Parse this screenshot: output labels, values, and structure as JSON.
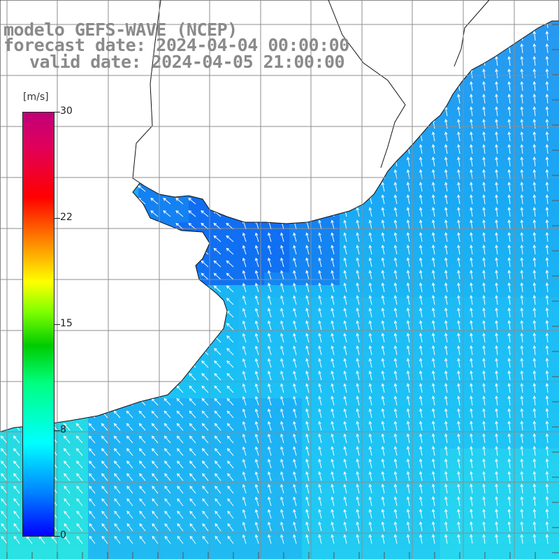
{
  "title": {
    "line1": "modelo GEFS-WAVE (NCEP)",
    "line2": "forecast date: 2024-04-04 00:00:00",
    "line3": "valid date: 2024-04-05 21:00:00"
  },
  "colorbar": {
    "units": "[m/s]",
    "min": 0,
    "max": 30,
    "ticks": [
      {
        "value": 30,
        "label": "30"
      },
      {
        "value": 22,
        "label": "22"
      },
      {
        "value": 15,
        "label": "15"
      },
      {
        "value": 8,
        "label": "8"
      },
      {
        "value": 0,
        "label": "0"
      }
    ],
    "colors": {
      "low": "#0000ff",
      "mid": "#00ffff",
      "high": "#c0007a"
    }
  },
  "map": {
    "wind_direction": "southeast to northwest (onshore, arrows pointing north-northwest)",
    "land_color": "#ffffff",
    "grid_color": "#8c8c8c"
  }
}
